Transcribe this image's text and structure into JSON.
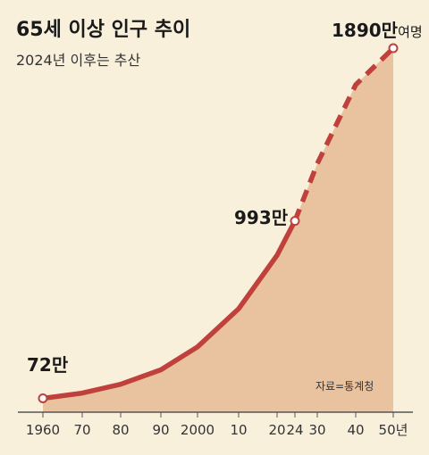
{
  "chart_data": {
    "type": "area",
    "title": "65세 이상 인구 추이",
    "subtitle": "2024년 이후는 추산",
    "source": "자료=통계청",
    "x_ticks": [
      "1960",
      "70",
      "80",
      "90",
      "2000",
      "10",
      "20",
      "24",
      "30",
      "40",
      "50년"
    ],
    "x_tick_years": [
      1960,
      1970,
      1980,
      1990,
      2000,
      2010,
      2020,
      2024,
      2030,
      2040,
      2050
    ],
    "actual": {
      "x": [
        1960,
        1970,
        1980,
        1990,
        2000,
        2010,
        2020,
        2024
      ],
      "y": [
        72,
        99,
        145,
        220,
        339,
        537,
        815,
        993
      ]
    },
    "projected": {
      "x": [
        2024,
        2030,
        2040,
        2050
      ],
      "y": [
        993,
        1290,
        1700,
        1890
      ]
    },
    "annotations": [
      {
        "year": 1960,
        "main": "72만",
        "suffix": ""
      },
      {
        "year": 2024,
        "main": "993만",
        "suffix": ""
      },
      {
        "year": 2050,
        "main": "1890만",
        "suffix": "여명"
      }
    ],
    "ylim": [
      0,
      1890
    ],
    "grid": false,
    "colors": {
      "background": "#f9f0dc",
      "area": "#e9c2a0",
      "line": "#c0403c",
      "axis": "#555555",
      "text": "#1a1a1a",
      "subtext": "#333333"
    }
  }
}
